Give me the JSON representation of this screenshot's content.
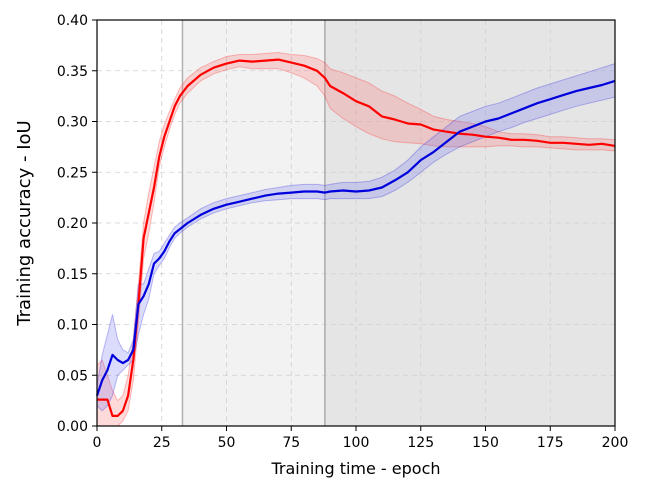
{
  "chart_data": {
    "type": "line",
    "title": "",
    "xlabel": "Training time - epoch",
    "ylabel": "Training accuracy - IoU",
    "xlim": [
      0,
      200
    ],
    "ylim": [
      0,
      0.4
    ],
    "xticks": [
      0,
      25,
      50,
      75,
      100,
      125,
      150,
      175,
      200
    ],
    "xtick_labels": [
      "0",
      "25",
      "50",
      "75",
      "100",
      "125",
      "150",
      "175",
      "200"
    ],
    "yticks": [
      0,
      0.05,
      0.1,
      0.15,
      0.2,
      0.25,
      0.3,
      0.35,
      0.4
    ],
    "ytick_labels": [
      "0.00",
      "0.05",
      "0.10",
      "0.15",
      "0.20",
      "0.25",
      "0.30",
      "0.35",
      "0.40"
    ],
    "grid": true,
    "regions": [
      {
        "x_start": 33,
        "x_end": 88,
        "color": "#f2f2f2"
      },
      {
        "x_start": 88,
        "x_end": 200,
        "color": "#e5e5e5"
      }
    ],
    "vlines": [
      {
        "x": 33,
        "color": "#b0b0b0"
      },
      {
        "x": 88,
        "color": "#aaaaaa"
      }
    ],
    "series": [
      {
        "color": "#ff0000",
        "band_color": "#ff6b6b",
        "x": [
          0,
          2,
          4,
          6,
          8,
          10,
          12,
          14,
          16,
          18,
          20,
          22,
          24,
          26,
          28,
          30,
          32,
          35,
          40,
          45,
          50,
          55,
          60,
          65,
          70,
          75,
          80,
          85,
          88,
          90,
          95,
          100,
          105,
          110,
          115,
          120,
          125,
          130,
          135,
          140,
          145,
          150,
          155,
          160,
          165,
          170,
          175,
          180,
          185,
          190,
          195,
          200
        ],
        "values": [
          0.026,
          0.026,
          0.026,
          0.01,
          0.01,
          0.015,
          0.03,
          0.065,
          0.12,
          0.185,
          0.21,
          0.235,
          0.265,
          0.285,
          0.3,
          0.315,
          0.325,
          0.335,
          0.346,
          0.353,
          0.357,
          0.36,
          0.359,
          0.36,
          0.361,
          0.358,
          0.355,
          0.35,
          0.343,
          0.335,
          0.328,
          0.32,
          0.315,
          0.305,
          0.302,
          0.298,
          0.297,
          0.292,
          0.29,
          0.288,
          0.287,
          0.285,
          0.284,
          0.282,
          0.282,
          0.281,
          0.279,
          0.279,
          0.278,
          0.277,
          0.278,
          0.276
        ],
        "lower": [
          0.0,
          0.0,
          0.0,
          0.0,
          0.0,
          0.005,
          0.015,
          0.045,
          0.1,
          0.165,
          0.19,
          0.22,
          0.255,
          0.275,
          0.292,
          0.307,
          0.318,
          0.328,
          0.34,
          0.347,
          0.351,
          0.354,
          0.352,
          0.352,
          0.352,
          0.348,
          0.343,
          0.335,
          0.325,
          0.313,
          0.303,
          0.295,
          0.288,
          0.283,
          0.28,
          0.279,
          0.278,
          0.276,
          0.275,
          0.275,
          0.275,
          0.275,
          0.276,
          0.276,
          0.275,
          0.275,
          0.274,
          0.273,
          0.272,
          0.272,
          0.272,
          0.271
        ],
        "upper": [
          0.06,
          0.065,
          0.05,
          0.035,
          0.025,
          0.03,
          0.05,
          0.085,
          0.14,
          0.2,
          0.23,
          0.255,
          0.28,
          0.297,
          0.31,
          0.322,
          0.333,
          0.343,
          0.353,
          0.359,
          0.364,
          0.366,
          0.366,
          0.367,
          0.368,
          0.366,
          0.365,
          0.362,
          0.358,
          0.352,
          0.348,
          0.343,
          0.338,
          0.33,
          0.325,
          0.318,
          0.312,
          0.305,
          0.302,
          0.3,
          0.298,
          0.295,
          0.29,
          0.288,
          0.288,
          0.287,
          0.285,
          0.285,
          0.284,
          0.283,
          0.283,
          0.282
        ]
      },
      {
        "color": "#0000dd",
        "band_color": "#7070ee",
        "x": [
          0,
          2,
          4,
          6,
          8,
          10,
          12,
          14,
          16,
          18,
          20,
          22,
          24,
          26,
          28,
          30,
          32,
          35,
          40,
          45,
          50,
          55,
          60,
          65,
          70,
          75,
          80,
          85,
          88,
          90,
          95,
          100,
          105,
          110,
          115,
          120,
          125,
          130,
          135,
          140,
          145,
          150,
          155,
          160,
          165,
          170,
          175,
          180,
          185,
          190,
          195,
          200
        ],
        "values": [
          0.03,
          0.045,
          0.055,
          0.07,
          0.065,
          0.062,
          0.065,
          0.075,
          0.12,
          0.128,
          0.14,
          0.16,
          0.165,
          0.172,
          0.182,
          0.19,
          0.194,
          0.2,
          0.208,
          0.214,
          0.218,
          0.221,
          0.224,
          0.227,
          0.229,
          0.23,
          0.231,
          0.231,
          0.23,
          0.231,
          0.232,
          0.231,
          0.232,
          0.235,
          0.242,
          0.25,
          0.262,
          0.27,
          0.28,
          0.29,
          0.295,
          0.3,
          0.303,
          0.308,
          0.313,
          0.318,
          0.322,
          0.326,
          0.33,
          0.333,
          0.336,
          0.34
        ],
        "lower": [
          0.02,
          0.015,
          0.02,
          0.03,
          0.05,
          0.055,
          0.06,
          0.065,
          0.09,
          0.11,
          0.125,
          0.15,
          0.158,
          0.165,
          0.176,
          0.185,
          0.19,
          0.196,
          0.204,
          0.21,
          0.214,
          0.217,
          0.22,
          0.222,
          0.223,
          0.224,
          0.224,
          0.224,
          0.223,
          0.224,
          0.224,
          0.224,
          0.224,
          0.226,
          0.232,
          0.24,
          0.25,
          0.26,
          0.268,
          0.275,
          0.28,
          0.285,
          0.29,
          0.294,
          0.299,
          0.303,
          0.307,
          0.311,
          0.315,
          0.318,
          0.321,
          0.324
        ],
        "upper": [
          0.04,
          0.07,
          0.09,
          0.11,
          0.085,
          0.075,
          0.072,
          0.085,
          0.14,
          0.14,
          0.155,
          0.17,
          0.172,
          0.18,
          0.188,
          0.196,
          0.2,
          0.205,
          0.214,
          0.22,
          0.224,
          0.227,
          0.23,
          0.233,
          0.235,
          0.237,
          0.238,
          0.238,
          0.237,
          0.238,
          0.24,
          0.24,
          0.241,
          0.245,
          0.252,
          0.262,
          0.275,
          0.285,
          0.295,
          0.305,
          0.31,
          0.315,
          0.318,
          0.323,
          0.328,
          0.333,
          0.337,
          0.341,
          0.345,
          0.349,
          0.353,
          0.357
        ]
      }
    ]
  }
}
